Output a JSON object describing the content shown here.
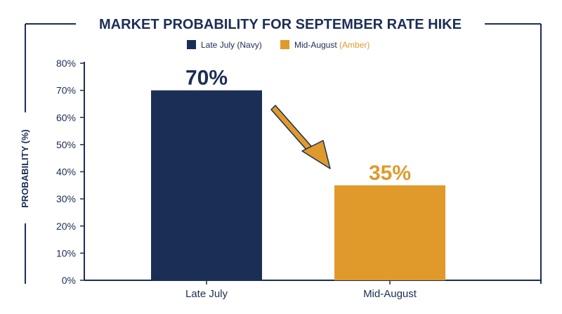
{
  "chart_data": {
    "type": "bar",
    "title": "MARKET PROBABILITY FOR SEPTEMBER RATE HIKE",
    "ylabel": "PROBABILITY (%)",
    "xlabel": "",
    "categories": [
      "Late July",
      "Mid-August"
    ],
    "values": [
      70,
      35
    ],
    "data_labels": [
      "70%",
      "35%"
    ],
    "bar_colors": [
      "#1b2e55",
      "#df9a2b"
    ],
    "ylim": [
      0,
      80
    ],
    "yticks": [
      "0%",
      "10%",
      "20%",
      "30%",
      "40%",
      "50%",
      "60%",
      "70%",
      "80%"
    ],
    "legend": {
      "placement": "top-center",
      "entries": [
        {
          "name": "Late July",
          "suffix": "(Navy)",
          "color": "#1b2e55"
        },
        {
          "name": "Mid-August",
          "suffix": "(Amber)",
          "color": "#df9a2b"
        }
      ]
    },
    "annotation": "arrow-from-first-bar-to-second-bar",
    "grid": false
  }
}
